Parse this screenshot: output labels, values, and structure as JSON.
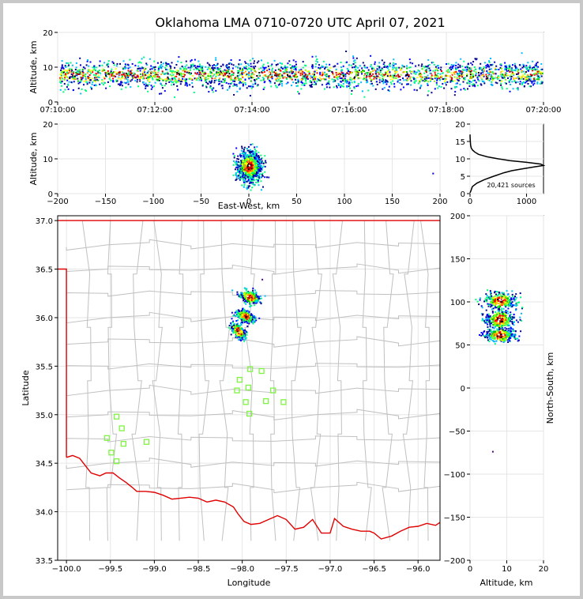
{
  "title": "Oklahoma LMA 0710-0720 UTC April 07, 2021",
  "colors": {
    "border_red": "#e00000",
    "county": "#c0c0c0",
    "station": "#7ef542",
    "grid": "#e6e6e6",
    "frame_bg": "#c8c8c8"
  },
  "chart_data": [
    {
      "id": "time_height",
      "type": "scatter",
      "xlabel": "",
      "ylabel": "Altitude, km",
      "x_ticks": [
        "07:10:00",
        "07:12:00",
        "07:14:00",
        "07:16:00",
        "07:18:00",
        "07:20:00"
      ],
      "xlim": [
        "07:10:00",
        "07:20:00"
      ],
      "ylim": [
        0,
        20
      ],
      "y_ticks": [
        0,
        10,
        20
      ],
      "altitude_band_km": [
        2,
        14
      ],
      "altitude_peak_km": 8
    },
    {
      "id": "ew_altitude",
      "type": "scatter",
      "xlabel": "East-West, km",
      "ylabel": "Altitude, km",
      "xlim": [
        -200,
        200
      ],
      "ylim": [
        0,
        20
      ],
      "x_ticks": [
        -200,
        -150,
        -100,
        -50,
        0,
        50,
        100,
        150,
        200
      ],
      "y_ticks": [
        0,
        10,
        20
      ],
      "ew_center_km": 0,
      "ew_spread_km": 12,
      "outlier_x_km": 192,
      "outlier_alt_km": 6
    },
    {
      "id": "histogram",
      "type": "line",
      "xlim": [
        0,
        1300
      ],
      "ylim": [
        0,
        20
      ],
      "x_ticks": [
        0,
        1000
      ],
      "y_ticks": [
        0,
        5,
        10,
        15,
        20
      ],
      "annotation": "20,421 sources",
      "profile": [
        [
          0,
          0.2
        ],
        [
          20,
          1
        ],
        [
          40,
          2
        ],
        [
          120,
          3
        ],
        [
          250,
          4
        ],
        [
          420,
          5
        ],
        [
          600,
          6
        ],
        [
          740,
          6.6
        ],
        [
          920,
          7.1
        ],
        [
          1100,
          7.6
        ],
        [
          1300,
          8.1
        ],
        [
          1250,
          8.5
        ],
        [
          1000,
          9.0
        ],
        [
          700,
          9.5
        ],
        [
          500,
          10.0
        ],
        [
          300,
          10.6
        ],
        [
          150,
          11.3
        ],
        [
          80,
          12.0
        ],
        [
          40,
          12.6
        ],
        [
          20,
          13.2
        ],
        [
          10,
          14.0
        ],
        [
          5,
          15.0
        ],
        [
          2,
          16.0
        ],
        [
          0,
          17.0
        ]
      ]
    },
    {
      "id": "plan_view",
      "type": "scatter",
      "xlabel": "Longitude",
      "ylabel": "Latitude",
      "xlim": [
        -100.1,
        -95.75
      ],
      "ylim": [
        33.5,
        37.05
      ],
      "x_ticks": [
        -100.0,
        -99.5,
        -99.0,
        -98.5,
        -98.0,
        -97.5,
        -97.0,
        -96.5,
        -96.0
      ],
      "y_ticks": [
        33.5,
        34.0,
        34.5,
        35.0,
        35.5,
        36.0,
        36.5,
        37.0
      ],
      "x_tick_labels": [
        "-100.0",
        "-99.5",
        "-99.0",
        "-98.5",
        "-98.0",
        "-97.5",
        "-97.0",
        "-96.5",
        "-96.0"
      ],
      "y_tick_labels": [
        "33.5",
        "34.0",
        "34.5",
        "35.0",
        "35.5",
        "36.0",
        "36.5",
        "37.0"
      ],
      "storm_cells": [
        {
          "lon": -97.92,
          "lat": 36.22,
          "r_lon": 0.09,
          "r_lat": 0.06
        },
        {
          "lon": -97.97,
          "lat": 36.02,
          "r_lon": 0.08,
          "r_lat": 0.06
        },
        {
          "lon": -98.05,
          "lat": 35.87,
          "r_lon": 0.06,
          "r_lat": 0.07
        }
      ],
      "stations": [
        [
          -97.91,
          35.47
        ],
        [
          -97.78,
          35.45
        ],
        [
          -98.03,
          35.36
        ],
        [
          -97.93,
          35.28
        ],
        [
          -98.06,
          35.25
        ],
        [
          -97.65,
          35.25
        ],
        [
          -97.96,
          35.13
        ],
        [
          -97.73,
          35.14
        ],
        [
          -97.53,
          35.13
        ],
        [
          -97.92,
          35.01
        ],
        [
          -99.43,
          34.98
        ],
        [
          -99.37,
          34.86
        ],
        [
          -99.54,
          34.76
        ],
        [
          -99.35,
          34.7
        ],
        [
          -99.09,
          34.72
        ],
        [
          -99.49,
          34.61
        ],
        [
          -99.43,
          34.52
        ]
      ],
      "state_border": [
        [
          -100.1,
          37.0
        ],
        [
          -95.75,
          37.0
        ]
      ],
      "panhandle_line": [
        [
          -100.1,
          36.5
        ],
        [
          -100.0,
          36.5
        ],
        [
          -100.0,
          34.56
        ]
      ],
      "red_river": [
        [
          -100.0,
          34.56
        ],
        [
          -99.93,
          34.58
        ],
        [
          -99.85,
          34.55
        ],
        [
          -99.78,
          34.47
        ],
        [
          -99.72,
          34.4
        ],
        [
          -99.62,
          34.37
        ],
        [
          -99.55,
          34.4
        ],
        [
          -99.47,
          34.4
        ],
        [
          -99.4,
          34.35
        ],
        [
          -99.32,
          34.3
        ],
        [
          -99.25,
          34.25
        ],
        [
          -99.2,
          34.21
        ],
        [
          -99.1,
          34.21
        ],
        [
          -99.0,
          34.2
        ],
        [
          -98.9,
          34.17
        ],
        [
          -98.8,
          34.13
        ],
        [
          -98.7,
          34.14
        ],
        [
          -98.6,
          34.15
        ],
        [
          -98.5,
          34.14
        ],
        [
          -98.4,
          34.1
        ],
        [
          -98.3,
          34.12
        ],
        [
          -98.2,
          34.1
        ],
        [
          -98.1,
          34.05
        ],
        [
          -98.05,
          33.98
        ],
        [
          -97.98,
          33.9
        ],
        [
          -97.9,
          33.87
        ],
        [
          -97.8,
          33.88
        ],
        [
          -97.7,
          33.92
        ],
        [
          -97.6,
          33.96
        ],
        [
          -97.5,
          33.92
        ],
        [
          -97.4,
          33.82
        ],
        [
          -97.3,
          33.84
        ],
        [
          -97.2,
          33.92
        ],
        [
          -97.1,
          33.78
        ],
        [
          -97.0,
          33.78
        ],
        [
          -96.95,
          33.93
        ],
        [
          -96.85,
          33.85
        ],
        [
          -96.75,
          33.82
        ],
        [
          -96.65,
          33.8
        ],
        [
          -96.55,
          33.8
        ],
        [
          -96.5,
          33.78
        ],
        [
          -96.42,
          33.72
        ],
        [
          -96.3,
          33.75
        ],
        [
          -96.2,
          33.8
        ],
        [
          -96.1,
          33.84
        ],
        [
          -96.0,
          33.85
        ],
        [
          -95.9,
          33.88
        ],
        [
          -95.8,
          33.86
        ],
        [
          -95.75,
          33.89
        ]
      ]
    },
    {
      "id": "altitude_ns",
      "type": "scatter",
      "xlabel": "Altitude, km",
      "ylabel": "North-South, km",
      "xlim": [
        0,
        20
      ],
      "ylim": [
        -200,
        200
      ],
      "x_ticks": [
        0,
        10,
        20
      ],
      "y_ticks": [
        -200,
        -150,
        -100,
        -50,
        0,
        50,
        100,
        150,
        200
      ],
      "ns_cells": [
        {
          "ns": 102,
          "spread": 7
        },
        {
          "ns": 80,
          "spread": 8
        },
        {
          "ns": 62,
          "spread": 6
        }
      ],
      "outlier_alt_km": 6,
      "outlier_ns_km": -73
    }
  ]
}
